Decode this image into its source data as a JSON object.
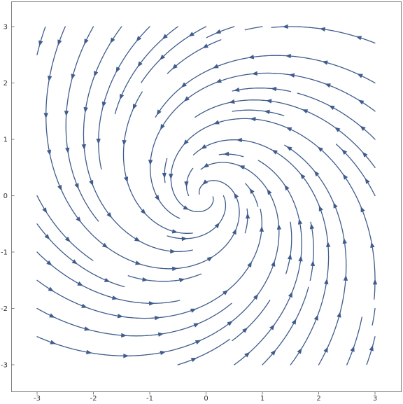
{
  "chart_data": {
    "type": "streamplot",
    "title": "",
    "xlabel": "",
    "ylabel": "",
    "xlim": [
      -3.45,
      3.45
    ],
    "ylim": [
      -3.45,
      3.45
    ],
    "x_ticks": [
      -3,
      -2,
      -1,
      0,
      1,
      2,
      3
    ],
    "y_ticks": [
      -3,
      -2,
      -1,
      0,
      1,
      2,
      3
    ],
    "x_tick_labels": [
      "-3",
      "-2",
      "-1",
      "0",
      "1",
      "2",
      "3"
    ],
    "y_tick_labels": [
      "-3",
      "-2",
      "-1",
      "0",
      "1",
      "2",
      "3"
    ],
    "field": {
      "description": "linear spiral sink: dx/dt = -x - 2y, dy/dt = 2x - y",
      "a": -1,
      "b": -2,
      "c": 2,
      "d": -1
    },
    "domain": {
      "x": [
        -3,
        3
      ],
      "y": [
        -3,
        3
      ]
    },
    "stream_color": "#3f5c8c",
    "grid": false,
    "frame": true
  }
}
